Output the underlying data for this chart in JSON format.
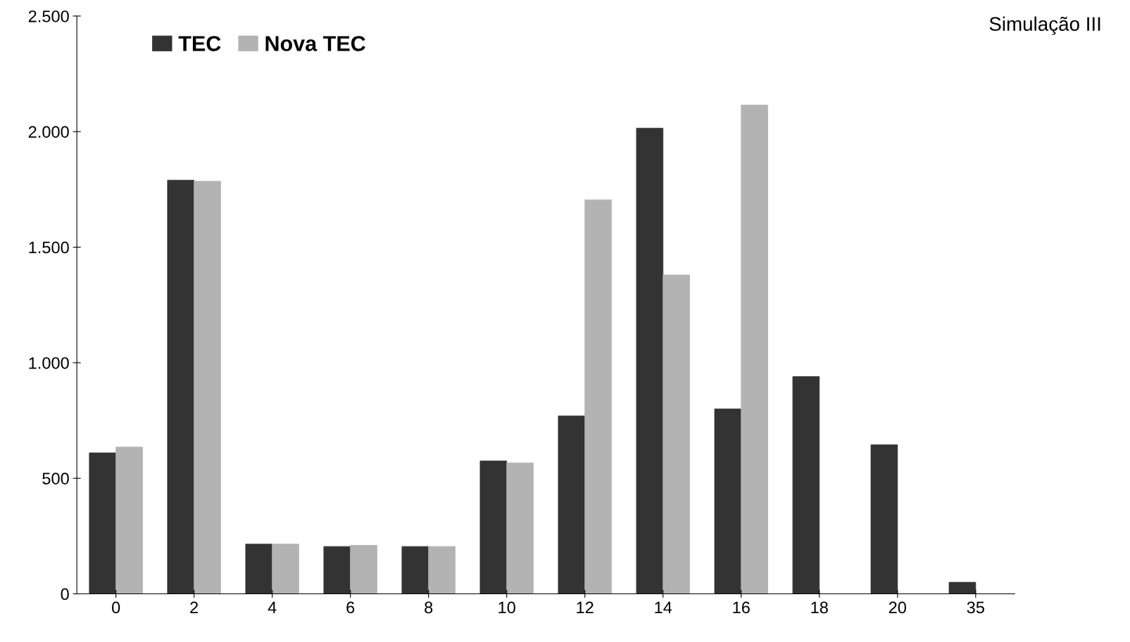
{
  "chart_data": {
    "type": "bar",
    "title": "Simulação III",
    "categories": [
      "0",
      "2",
      "4",
      "6",
      "8",
      "10",
      "12",
      "14",
      "16",
      "18",
      "20",
      "35"
    ],
    "series": [
      {
        "name": "TEC",
        "color": "#333333",
        "values": [
          610,
          1790,
          215,
          205,
          205,
          575,
          770,
          2015,
          800,
          940,
          645,
          50
        ]
      },
      {
        "name": "Nova TEC",
        "color": "#b3b3b3",
        "values": [
          635,
          1785,
          215,
          210,
          205,
          567,
          1705,
          1380,
          2115,
          0,
          0,
          0
        ]
      }
    ],
    "ylim": [
      0,
      2500
    ],
    "yticks": [
      {
        "value": 0,
        "label": "0"
      },
      {
        "value": 500,
        "label": "500"
      },
      {
        "value": 1000,
        "label": "1.000"
      },
      {
        "value": 1500,
        "label": "1.500"
      },
      {
        "value": 2000,
        "label": "2.000"
      },
      {
        "value": 2500,
        "label": "2.500"
      }
    ],
    "grid": false,
    "legend": "top left"
  }
}
